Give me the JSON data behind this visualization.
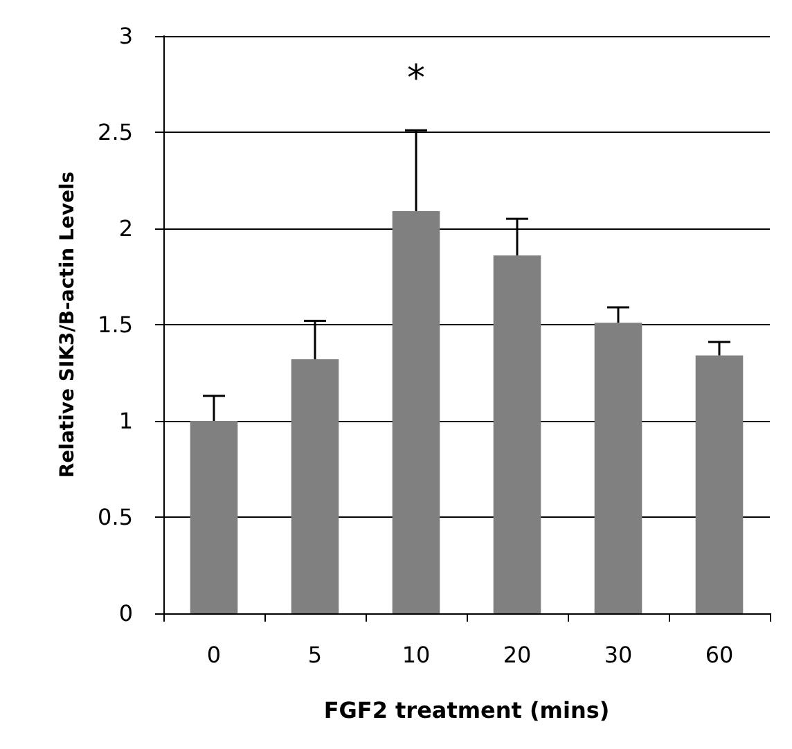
{
  "chart_data": {
    "type": "bar",
    "xlabel": "FGF2 treatment (mins)",
    "ylabel": "Relative SIK3/B-actin Levels",
    "categories": [
      "0",
      "5",
      "10",
      "20",
      "30",
      "60"
    ],
    "values": [
      1.0,
      1.32,
      2.09,
      1.86,
      1.51,
      1.34
    ],
    "errors": [
      [
        1.0,
        1.13
      ],
      [
        1.32,
        1.52
      ],
      [
        2.09,
        2.51
      ],
      [
        1.86,
        2.05
      ],
      [
        1.51,
        1.59
      ],
      [
        1.34,
        1.41
      ]
    ],
    "color": "#808080",
    "ylim": [
      0,
      3
    ],
    "yticks": [
      0,
      0.5,
      1,
      1.5,
      2,
      2.5,
      3
    ],
    "grid": "y",
    "annotations": [
      "*"
    ]
  }
}
